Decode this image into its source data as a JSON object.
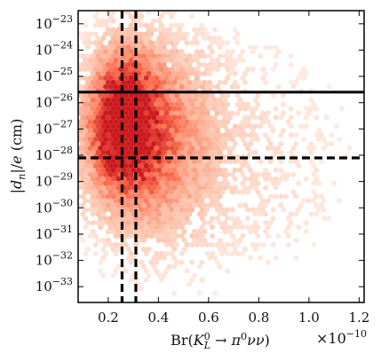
{
  "chart_data": {
    "type": "heatmap",
    "xlabel": "Br(K_L^0 → π^0 νν)",
    "ylabel": "|d_n|/e (cm)",
    "x_multiplier": "×10^−10",
    "xlim": [
      0.08,
      1.22
    ],
    "ylim_log10": [
      -33.6,
      -22.5
    ],
    "y_scale": "log",
    "x_ticks": [
      0.2,
      0.4,
      0.6,
      0.8,
      1.0,
      1.2
    ],
    "x_tick_labels": [
      "0.2",
      "0.4",
      "0.6",
      "0.8",
      "1.0",
      "1.2"
    ],
    "y_ticks_log10": [
      -23,
      -24,
      -25,
      -26,
      -27,
      -28,
      -29,
      -30,
      -31,
      -32,
      -33
    ],
    "y_tick_labels": [
      "10^−23",
      "10^−24",
      "10^−25",
      "10^−26",
      "10^−27",
      "10^−28",
      "10^−29",
      "10^−30",
      "10^−31",
      "10^−32",
      "10^−33"
    ],
    "colormap": [
      "#fff5f0",
      "#fcbba1",
      "#fb6a4a",
      "#cb181d"
    ],
    "density_regions": [
      {
        "name": "core",
        "x_range": [
          0.13,
          0.38
        ],
        "log10_y_range": [
          -29.2,
          -24.2
        ],
        "intensity": 0.95
      },
      {
        "name": "main",
        "x_range": [
          0.1,
          0.6
        ],
        "log10_y_range": [
          -31.0,
          -23.6
        ],
        "intensity": 0.6
      },
      {
        "name": "tail",
        "x_range": [
          0.1,
          1.2
        ],
        "log10_y_range": [
          -33.2,
          -23.0
        ],
        "intensity": 0.15
      }
    ],
    "reference_lines": [
      {
        "orientation": "horizontal",
        "log10_y": -25.6,
        "style": "solid"
      },
      {
        "orientation": "horizontal",
        "log10_y": -28.1,
        "style": "dashed"
      },
      {
        "orientation": "vertical",
        "x": 0.255,
        "style": "dashed"
      },
      {
        "orientation": "vertical",
        "x": 0.31,
        "style": "dashed"
      }
    ],
    "grid": false,
    "legend": "none"
  }
}
